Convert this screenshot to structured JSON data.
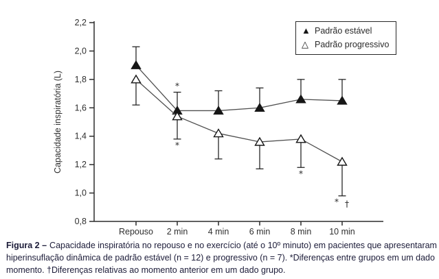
{
  "caption": {
    "prefix": "Figura 2 –",
    "line1_rest": "Capacidade inspiratória no repouso e no exercício (até o 10º minuto) em pacientes que apresentaram",
    "line2": "hiperinsuflação dinâmica de padrão estável (n = 12) e progressivo (n = 7). *Diferenças entre grupos em um dado",
    "line3": "momento. †Diferenças relativas ao momento anterior em um dado grupo."
  },
  "icons": {
    "filled_triangle": "▲",
    "open_triangle": "△"
  },
  "chart_data": {
    "type": "line",
    "title": "",
    "xlabel": "",
    "ylabel": "Capacidade inspiratória (L)",
    "categories": [
      "Repouso",
      "2 min",
      "4 min",
      "6 min",
      "8 min",
      "10 min"
    ],
    "ylim": [
      0.8,
      2.2
    ],
    "ytick_labels": [
      "0,8",
      "1,0",
      "1,2",
      "1,4",
      "1,6",
      "1,8",
      "2,0",
      "2,2"
    ],
    "grid": false,
    "legend_position": "top-right",
    "series": [
      {
        "key": "estavel",
        "name": "Padrão estável",
        "marker": "filled-triangle",
        "error_dir": "up",
        "values": [
          1.9,
          1.58,
          1.58,
          1.6,
          1.66,
          1.65
        ],
        "error": [
          0.13,
          0.13,
          0.14,
          0.14,
          0.14,
          0.15
        ]
      },
      {
        "key": "progressivo",
        "name": "Padrão progressivo",
        "marker": "open-triangle",
        "error_dir": "down",
        "values": [
          1.8,
          1.54,
          1.42,
          1.36,
          1.38,
          1.22
        ],
        "error": [
          0.18,
          0.16,
          0.18,
          0.19,
          0.2,
          0.24
        ]
      }
    ],
    "annotations": [
      {
        "symbol": "*",
        "series": "estavel",
        "index": 1,
        "position": "above"
      },
      {
        "symbol": "*",
        "series": "progressivo",
        "index": 1,
        "position": "below"
      },
      {
        "symbol": "*",
        "series": "progressivo",
        "index": 4,
        "position": "below"
      },
      {
        "symbol": "*",
        "series": "progressivo",
        "index": 5,
        "position": "below",
        "dx": -8
      },
      {
        "symbol": "†",
        "series": "progressivo",
        "index": 5,
        "position": "below",
        "dx": 7,
        "dy": 3
      }
    ],
    "colors": {
      "axis": "#2b2b2b",
      "line": "#4f4f4f",
      "error_bar": "#262626",
      "marker": "#161616",
      "tick_text": "#2e2e2e",
      "caption_text": "#1b1b38",
      "background": "#ffffff"
    }
  }
}
